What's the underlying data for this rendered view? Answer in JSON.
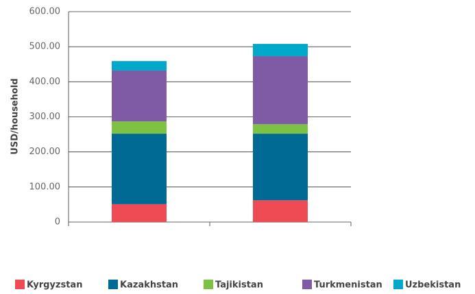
{
  "chart_data": {
    "type": "stacked_bar",
    "y_label": "USD/household",
    "categories": [
      null,
      null
    ],
    "series": [
      {
        "name": "Kyrgyzstan",
        "color": "#ef4b55",
        "values": [
          51,
          62
        ]
      },
      {
        "name": "Kazakhstan",
        "color": "#006a94",
        "values": [
          201,
          190
        ]
      },
      {
        "name": "Tajikistan",
        "color": "#7dc242",
        "values": [
          35,
          27
        ]
      },
      {
        "name": "Turkmenistan",
        "color": "#7f5ba6",
        "values": [
          145,
          194
        ]
      },
      {
        "name": "Uzbekistan",
        "color": "#00a9c9",
        "values": [
          27,
          35
        ]
      }
    ],
    "ylim": [
      0,
      600
    ],
    "yticks": [
      0,
      {
        "value": 100,
        "label": "100.00"
      },
      {
        "value": 200,
        "label": "200.00"
      },
      {
        "value": 300,
        "label": "300.00"
      },
      {
        "value": 400,
        "label": "400.00"
      },
      {
        "value": 500,
        "label": "500.00"
      },
      {
        "value": 600,
        "label": "600.00"
      }
    ],
    "grid": true,
    "legend": "bottom"
  }
}
